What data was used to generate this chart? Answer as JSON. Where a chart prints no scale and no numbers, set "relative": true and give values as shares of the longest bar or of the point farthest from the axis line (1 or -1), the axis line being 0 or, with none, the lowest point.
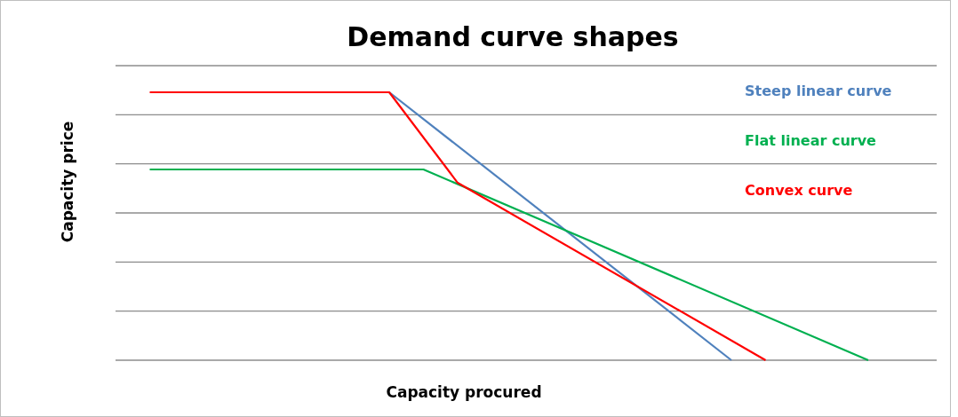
{
  "chart_data": {
    "type": "line",
    "title": "Demand curve shapes",
    "xlabel": "Capacity procured",
    "ylabel": "Capacity price",
    "relative": true,
    "grid": "y",
    "marker": "none",
    "line_style": "solid",
    "categories": [
      null,
      null,
      null,
      null,
      null,
      null,
      null,
      null,
      null,
      null,
      null,
      null,
      null,
      null,
      null,
      null,
      null,
      null,
      null,
      null,
      null,
      null,
      null,
      null,
      null
    ],
    "series": [
      {
        "name": "Steep linear curve",
        "color": "#4f81bd",
        "values": [
          null,
          null,
          null,
          null,
          null,
          null,
          null,
          null,
          1,
          null,
          null,
          null,
          null,
          null,
          null,
          null,
          null,
          null,
          0,
          null,
          null,
          null,
          null,
          null,
          null
        ]
      },
      {
        "name": "Flat linear curve",
        "color": "#00b050",
        "values": [
          null,
          0.712,
          null,
          null,
          null,
          null,
          null,
          null,
          null,
          0.712,
          null,
          null,
          null,
          null,
          null,
          null,
          null,
          null,
          null,
          null,
          null,
          null,
          0,
          null,
          null
        ]
      },
      {
        "name": "Convex curve",
        "color": "#ff0000",
        "values": [
          null,
          1,
          null,
          null,
          null,
          null,
          null,
          null,
          1,
          null,
          0.662,
          null,
          null,
          null,
          null,
          null,
          null,
          null,
          null,
          0,
          null,
          null,
          null,
          null,
          null
        ]
      }
    ]
  }
}
